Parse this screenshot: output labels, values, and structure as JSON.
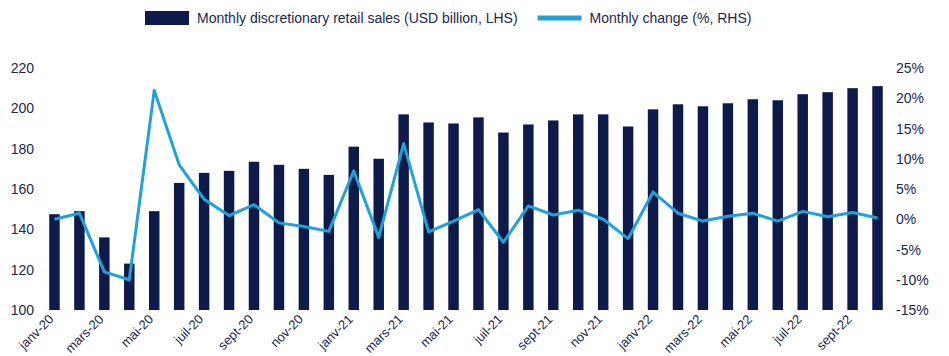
{
  "chart_data": {
    "type": "bar",
    "categories": [
      "janv-20",
      null,
      "mars-20",
      null,
      "mai-20",
      null,
      "juil-20",
      null,
      "sept-20",
      null,
      "nov-20",
      null,
      "janv-21",
      null,
      "mars-21",
      null,
      "mai-21",
      null,
      "juil-21",
      null,
      "sept-21",
      null,
      "nov-21",
      null,
      "janv-22",
      null,
      "mars-22",
      null,
      "mai-22",
      null,
      "juil-22",
      null,
      "sept-22",
      null
    ],
    "series": [
      {
        "name": "Monthly discretionary retail sales (USD billion, LHS)",
        "type": "bar",
        "color": "#0e1a4a",
        "values": [
          147.5,
          149,
          136,
          123,
          149,
          163,
          168,
          169,
          173.5,
          172,
          170,
          167,
          181,
          175,
          197,
          193,
          192.5,
          195.5,
          188,
          192,
          194,
          197,
          197,
          191,
          199.5,
          202,
          201,
          202.5,
          204.5,
          204,
          207,
          208,
          210,
          211
        ]
      },
      {
        "name": "Monthly change (%, RHS)",
        "type": "line",
        "axis": "y2",
        "color": "#1fa2d8",
        "values": [
          0,
          1,
          -8.7,
          -10,
          21.3,
          9,
          3.3,
          0.6,
          2.4,
          -0.6,
          -1.2,
          -2,
          8,
          -3,
          12.5,
          -2.1,
          -0.3,
          1.6,
          -3.8,
          2.2,
          0.7,
          1.5,
          0,
          -3.2,
          4.5,
          1,
          -0.3,
          0.5,
          1,
          -0.3,
          1.3,
          0.4,
          1.1,
          0.2
        ]
      }
    ],
    "ylim": [
      100,
      220
    ],
    "yticks": [
      100,
      120,
      140,
      160,
      180,
      200,
      220
    ],
    "y2lim": [
      -15,
      25
    ],
    "y2ticks": [
      {
        "value": -15,
        "label": "-15%"
      },
      {
        "value": -10,
        "label": "-10%"
      },
      {
        "value": -5,
        "label": "-5%"
      },
      {
        "value": 0,
        "label": "0%"
      },
      {
        "value": 5,
        "label": "5%"
      },
      {
        "value": 10,
        "label": "10%"
      },
      {
        "value": 15,
        "label": "15%"
      },
      {
        "value": 20,
        "label": "20%"
      },
      {
        "value": 25,
        "label": "25%"
      }
    ],
    "grid": false,
    "legend": "top"
  }
}
